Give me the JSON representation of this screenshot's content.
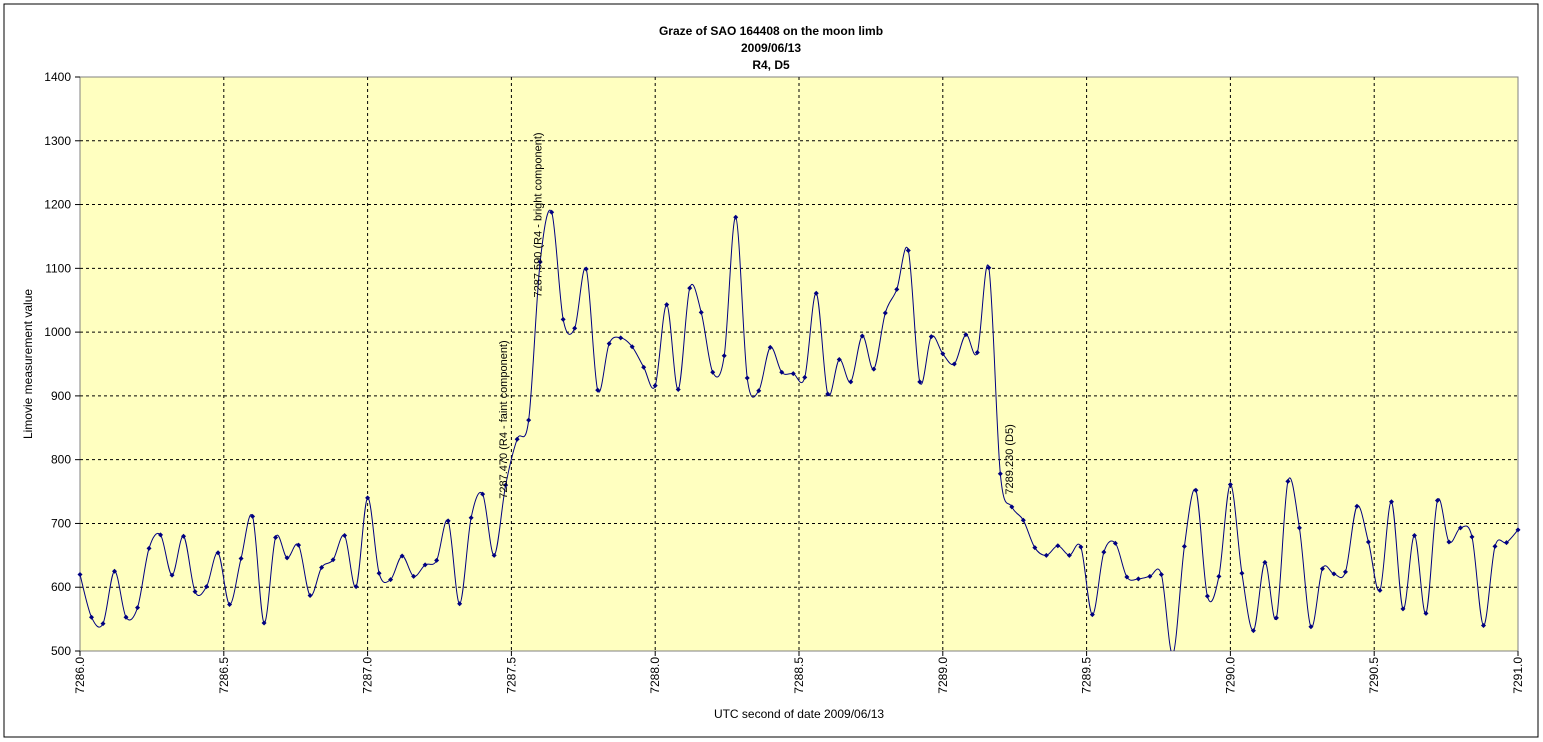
{
  "chart_data": {
    "type": "line",
    "title": [
      "Graze of SAO 164408 on the moon limb",
      "2009/06/13",
      "R4, D5"
    ],
    "x_label": "UTC second of date 2009/06/13",
    "y_label": "Limovie measurement value",
    "x": [
      7286.0,
      7286.04,
      7286.08,
      7286.12,
      7286.16,
      7286.2,
      7286.24,
      7286.28,
      7286.32,
      7286.36,
      7286.4,
      7286.44,
      7286.48,
      7286.52,
      7286.56,
      7286.6,
      7286.64,
      7286.68,
      7286.72,
      7286.76,
      7286.8,
      7286.84,
      7286.88,
      7286.92,
      7286.96,
      7287.0,
      7287.04,
      7287.08,
      7287.12,
      7287.16,
      7287.2,
      7287.24,
      7287.28,
      7287.32,
      7287.36,
      7287.4,
      7287.44,
      7287.48,
      7287.52,
      7287.56,
      7287.6,
      7287.64,
      7287.68,
      7287.72,
      7287.76,
      7287.8,
      7287.84,
      7287.88,
      7287.92,
      7287.96,
      7288.0,
      7288.04,
      7288.08,
      7288.12,
      7288.16,
      7288.2,
      7288.24,
      7288.28,
      7288.32,
      7288.36,
      7288.4,
      7288.44,
      7288.48,
      7288.52,
      7288.56,
      7288.6,
      7288.64,
      7288.68,
      7288.72,
      7288.76,
      7288.8,
      7288.84,
      7288.88,
      7288.92,
      7288.96,
      7289.0,
      7289.04,
      7289.08,
      7289.12,
      7289.16,
      7289.2,
      7289.24,
      7289.28,
      7289.32,
      7289.36,
      7289.4,
      7289.44,
      7289.48,
      7289.52,
      7289.56,
      7289.6,
      7289.64,
      7289.68,
      7289.72,
      7289.76,
      7289.8,
      7289.84,
      7289.88,
      7289.92,
      7289.96,
      7290.0,
      7290.04,
      7290.08,
      7290.12,
      7290.16,
      7290.2,
      7290.24,
      7290.28,
      7290.32,
      7290.36,
      7290.4,
      7290.44,
      7290.48,
      7290.52,
      7290.56,
      7290.6,
      7290.64,
      7290.68,
      7290.72,
      7290.76,
      7290.8,
      7290.84,
      7290.88,
      7290.92,
      7290.96,
      7291.0
    ],
    "values": [
      620,
      553,
      543,
      625,
      553,
      568,
      661,
      682,
      619,
      680,
      593,
      601,
      654,
      573,
      645,
      711,
      544,
      678,
      646,
      666,
      587,
      631,
      643,
      681,
      601,
      740,
      622,
      612,
      649,
      617,
      635,
      642,
      704,
      574,
      709,
      746,
      650,
      760,
      832,
      862,
      1110,
      1188,
      1020,
      1006,
      1099,
      909,
      982,
      991,
      977,
      945,
      916,
      1043,
      910,
      1069,
      1031,
      937,
      963,
      1180,
      928,
      908,
      976,
      937,
      935,
      929,
      1061,
      903,
      957,
      922,
      994,
      942,
      1030,
      1067,
      1128,
      922,
      993,
      966,
      950,
      996,
      968,
      1101,
      778,
      726,
      705,
      662,
      650,
      665,
      650,
      663,
      557,
      655,
      669,
      616,
      613,
      617,
      620,
      495,
      664,
      752,
      586,
      617,
      761,
      622,
      532,
      639,
      552,
      766,
      693,
      538,
      629,
      621,
      624,
      727,
      671,
      595,
      734,
      566,
      681,
      559,
      736,
      671,
      693,
      679,
      540,
      664,
      670,
      690
    ],
    "color": "#000080",
    "annotations": [
      {
        "text": "7287.470 (R4 - faint component)",
        "x": 7287.47
      },
      {
        "text": "7287.590 (R4 - bright component)",
        "x": 7287.59
      },
      {
        "text": "7289.230 (D5)",
        "x": 7289.23
      }
    ],
    "xlim": [
      7286,
      7291
    ],
    "xticks": [
      {
        "value": 7286,
        "label": "7286.0"
      },
      7286.5,
      {
        "value": 7287,
        "label": "7287.0"
      },
      7287.5,
      {
        "value": 7288,
        "label": "7288.0"
      },
      7288.5,
      {
        "value": 7289,
        "label": "7289.0"
      },
      7289.5,
      {
        "value": 7290,
        "label": "7290.0"
      },
      7290.5,
      {
        "value": 7291,
        "label": "7291.0"
      }
    ],
    "ylim": [
      500,
      1400
    ],
    "yticks": [
      500,
      600,
      700,
      800,
      900,
      1000,
      1100,
      1200,
      1300,
      1400
    ],
    "grid": true
  }
}
